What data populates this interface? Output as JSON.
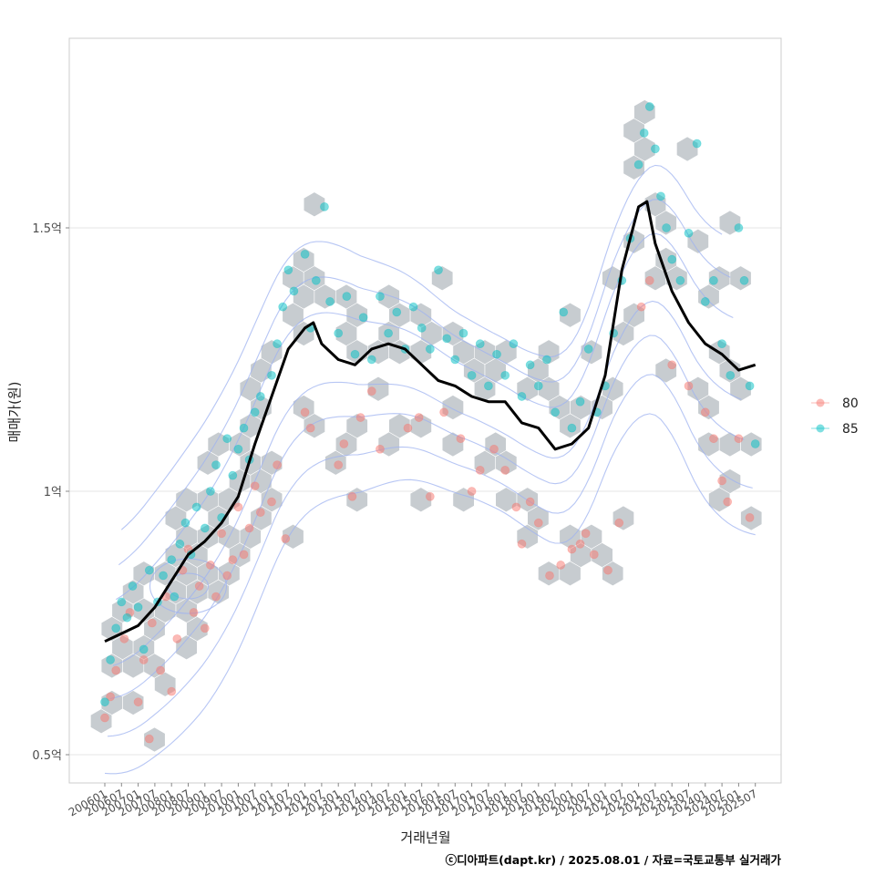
{
  "chart_data": {
    "type": "scatter",
    "xlabel": "거래년월",
    "ylabel": "매매가(원)",
    "caption": "ⓒ디아파트(dapt.kr) / 2025.08.01 / 자료=국토교통부 실거래가",
    "x_ticks": [
      "200601",
      "200607",
      "200701",
      "200707",
      "200801",
      "200807",
      "200901",
      "200907",
      "201001",
      "201007",
      "201101",
      "201107",
      "201201",
      "201207",
      "201301",
      "201307",
      "201401",
      "201407",
      "201501",
      "201507",
      "201601",
      "201607",
      "201701",
      "201707",
      "201801",
      "201807",
      "201901",
      "201907",
      "202001",
      "202007",
      "202101",
      "202107",
      "202201",
      "202207",
      "202301",
      "202307",
      "202401",
      "202407",
      "202501",
      "202507"
    ],
    "y_ticks": [
      {
        "value": 0.5,
        "label": "0.5억"
      },
      {
        "value": 1.0,
        "label": "1억"
      },
      {
        "value": 1.5,
        "label": "1.5억"
      }
    ],
    "y_unit": "억원",
    "ylim": [
      0.47,
      1.83
    ],
    "grid": true,
    "legend": {
      "position": "right",
      "entries": [
        {
          "name": "80",
          "color": "#F8766D"
        },
        {
          "name": "85",
          "color": "#00BFC4"
        }
      ]
    },
    "layers": [
      "hexbin",
      "density-contour",
      "points",
      "moving-average-line"
    ],
    "trend_line": {
      "name": "moving average",
      "color": "#000000",
      "x": [
        "2006-01",
        "2006-07",
        "2007-01",
        "2007-07",
        "2008-01",
        "2008-07",
        "2009-01",
        "2009-07",
        "2010-01",
        "2010-07",
        "2011-01",
        "2011-07",
        "2012-01",
        "2012-04",
        "2012-07",
        "2013-01",
        "2013-07",
        "2014-01",
        "2014-07",
        "2015-01",
        "2015-07",
        "2016-01",
        "2016-07",
        "2017-01",
        "2017-07",
        "2018-01",
        "2018-07",
        "2019-01",
        "2019-07",
        "2020-01",
        "2020-07",
        "2021-01",
        "2021-07",
        "2022-01",
        "2022-04",
        "2022-07",
        "2023-01",
        "2023-07",
        "2024-01",
        "2024-07",
        "2025-01",
        "2025-07"
      ],
      "y": [
        0.715,
        0.73,
        0.745,
        0.78,
        0.83,
        0.88,
        0.905,
        0.94,
        0.99,
        1.09,
        1.18,
        1.27,
        1.31,
        1.32,
        1.28,
        1.25,
        1.24,
        1.27,
        1.28,
        1.27,
        1.24,
        1.21,
        1.2,
        1.18,
        1.17,
        1.17,
        1.13,
        1.12,
        1.08,
        1.09,
        1.12,
        1.22,
        1.42,
        1.54,
        1.55,
        1.47,
        1.38,
        1.32,
        1.28,
        1.26,
        1.23,
        1.24
      ]
    },
    "series": [
      {
        "name": "80",
        "color": "#F8766D",
        "points": [
          [
            "2006-01",
            0.57
          ],
          [
            "2006-03",
            0.61
          ],
          [
            "2006-05",
            0.66
          ],
          [
            "2006-08",
            0.72
          ],
          [
            "2006-10",
            0.77
          ],
          [
            "2007-01",
            0.6
          ],
          [
            "2007-03",
            0.68
          ],
          [
            "2007-05",
            0.53
          ],
          [
            "2007-06",
            0.75
          ],
          [
            "2007-09",
            0.66
          ],
          [
            "2007-11",
            0.8
          ],
          [
            "2008-01",
            0.62
          ],
          [
            "2008-03",
            0.72
          ],
          [
            "2008-05",
            0.85
          ],
          [
            "2008-07",
            0.89
          ],
          [
            "2008-09",
            0.77
          ],
          [
            "2008-11",
            0.82
          ],
          [
            "2009-01",
            0.74
          ],
          [
            "2009-03",
            0.86
          ],
          [
            "2009-05",
            0.8
          ],
          [
            "2009-07",
            0.92
          ],
          [
            "2009-09",
            0.84
          ],
          [
            "2009-11",
            0.87
          ],
          [
            "2010-01",
            0.97
          ],
          [
            "2010-03",
            0.88
          ],
          [
            "2010-05",
            0.93
          ],
          [
            "2010-07",
            1.01
          ],
          [
            "2010-09",
            0.96
          ],
          [
            "2011-01",
            0.98
          ],
          [
            "2011-03",
            1.05
          ],
          [
            "2011-06",
            0.91
          ],
          [
            "2012-01",
            1.15
          ],
          [
            "2012-03",
            1.12
          ],
          [
            "2013-01",
            1.05
          ],
          [
            "2013-03",
            1.09
          ],
          [
            "2013-06",
            0.99
          ],
          [
            "2013-09",
            1.14
          ],
          [
            "2014-01",
            1.19
          ],
          [
            "2014-04",
            1.08
          ],
          [
            "2015-02",
            1.12
          ],
          [
            "2015-06",
            1.14
          ],
          [
            "2015-10",
            0.99
          ],
          [
            "2016-03",
            1.15
          ],
          [
            "2016-09",
            1.1
          ],
          [
            "2017-01",
            1.0
          ],
          [
            "2017-04",
            1.04
          ],
          [
            "2017-09",
            1.08
          ],
          [
            "2018-01",
            1.04
          ],
          [
            "2018-05",
            0.97
          ],
          [
            "2018-07",
            0.9
          ],
          [
            "2018-10",
            0.98
          ],
          [
            "2019-01",
            0.94
          ],
          [
            "2019-05",
            0.84
          ],
          [
            "2019-09",
            0.86
          ],
          [
            "2020-01",
            0.89
          ],
          [
            "2020-04",
            0.9
          ],
          [
            "2020-06",
            0.92
          ],
          [
            "2020-09",
            0.88
          ],
          [
            "2021-02",
            0.85
          ],
          [
            "2021-06",
            0.94
          ],
          [
            "2022-02",
            1.35
          ],
          [
            "2022-05",
            1.4
          ],
          [
            "2023-01",
            1.24
          ],
          [
            "2023-07",
            1.2
          ],
          [
            "2024-01",
            1.15
          ],
          [
            "2024-04",
            1.1
          ],
          [
            "2024-07",
            1.02
          ],
          [
            "2024-09",
            0.98
          ],
          [
            "2025-01",
            1.1
          ],
          [
            "2025-05",
            0.95
          ]
        ]
      },
      {
        "name": "85",
        "color": "#00BFC4",
        "points": [
          [
            "2006-01",
            0.6
          ],
          [
            "2006-03",
            0.68
          ],
          [
            "2006-05",
            0.74
          ],
          [
            "2006-07",
            0.79
          ],
          [
            "2006-09",
            0.76
          ],
          [
            "2006-11",
            0.82
          ],
          [
            "2007-01",
            0.78
          ],
          [
            "2007-03",
            0.7
          ],
          [
            "2007-05",
            0.85
          ],
          [
            "2007-08",
            0.79
          ],
          [
            "2007-10",
            0.84
          ],
          [
            "2008-01",
            0.87
          ],
          [
            "2008-02",
            0.8
          ],
          [
            "2008-04",
            0.9
          ],
          [
            "2008-06",
            0.94
          ],
          [
            "2008-08",
            0.88
          ],
          [
            "2008-10",
            0.97
          ],
          [
            "2009-01",
            0.93
          ],
          [
            "2009-03",
            1.0
          ],
          [
            "2009-05",
            1.05
          ],
          [
            "2009-07",
            0.95
          ],
          [
            "2009-09",
            1.1
          ],
          [
            "2009-11",
            1.03
          ],
          [
            "2010-01",
            1.08
          ],
          [
            "2010-03",
            1.12
          ],
          [
            "2010-05",
            1.06
          ],
          [
            "2010-07",
            1.15
          ],
          [
            "2010-09",
            1.18
          ],
          [
            "2011-01",
            1.22
          ],
          [
            "2011-03",
            1.28
          ],
          [
            "2011-05",
            1.35
          ],
          [
            "2011-07",
            1.42
          ],
          [
            "2011-09",
            1.38
          ],
          [
            "2012-01",
            1.45
          ],
          [
            "2012-03",
            1.31
          ],
          [
            "2012-05",
            1.4
          ],
          [
            "2012-08",
            1.54
          ],
          [
            "2012-10",
            1.36
          ],
          [
            "2013-01",
            1.3
          ],
          [
            "2013-04",
            1.37
          ],
          [
            "2013-07",
            1.26
          ],
          [
            "2013-10",
            1.33
          ],
          [
            "2014-01",
            1.25
          ],
          [
            "2014-04",
            1.37
          ],
          [
            "2014-07",
            1.3
          ],
          [
            "2014-10",
            1.34
          ],
          [
            "2015-01",
            1.27
          ],
          [
            "2015-04",
            1.35
          ],
          [
            "2015-07",
            1.31
          ],
          [
            "2015-10",
            1.27
          ],
          [
            "2016-01",
            1.42
          ],
          [
            "2016-04",
            1.29
          ],
          [
            "2016-07",
            1.25
          ],
          [
            "2016-10",
            1.3
          ],
          [
            "2017-01",
            1.22
          ],
          [
            "2017-04",
            1.28
          ],
          [
            "2017-07",
            1.2
          ],
          [
            "2017-10",
            1.26
          ],
          [
            "2018-01",
            1.22
          ],
          [
            "2018-04",
            1.28
          ],
          [
            "2018-07",
            1.18
          ],
          [
            "2018-10",
            1.24
          ],
          [
            "2019-01",
            1.2
          ],
          [
            "2019-04",
            1.25
          ],
          [
            "2019-07",
            1.15
          ],
          [
            "2019-10",
            1.34
          ],
          [
            "2020-01",
            1.12
          ],
          [
            "2020-04",
            1.17
          ],
          [
            "2020-07",
            1.27
          ],
          [
            "2020-10",
            1.15
          ],
          [
            "2021-01",
            1.2
          ],
          [
            "2021-04",
            1.3
          ],
          [
            "2021-07",
            1.4
          ],
          [
            "2021-10",
            1.48
          ],
          [
            "2022-01",
            1.62
          ],
          [
            "2022-03",
            1.68
          ],
          [
            "2022-05",
            1.73
          ],
          [
            "2022-07",
            1.65
          ],
          [
            "2022-09",
            1.56
          ],
          [
            "2022-11",
            1.5
          ],
          [
            "2023-01",
            1.44
          ],
          [
            "2023-04",
            1.4
          ],
          [
            "2023-07",
            1.49
          ],
          [
            "2023-10",
            1.66
          ],
          [
            "2024-01",
            1.36
          ],
          [
            "2024-04",
            1.4
          ],
          [
            "2024-07",
            1.28
          ],
          [
            "2024-10",
            1.22
          ],
          [
            "2025-01",
            1.5
          ],
          [
            "2025-03",
            1.4
          ],
          [
            "2025-05",
            1.2
          ],
          [
            "2025-07",
            1.09
          ]
        ]
      }
    ]
  }
}
